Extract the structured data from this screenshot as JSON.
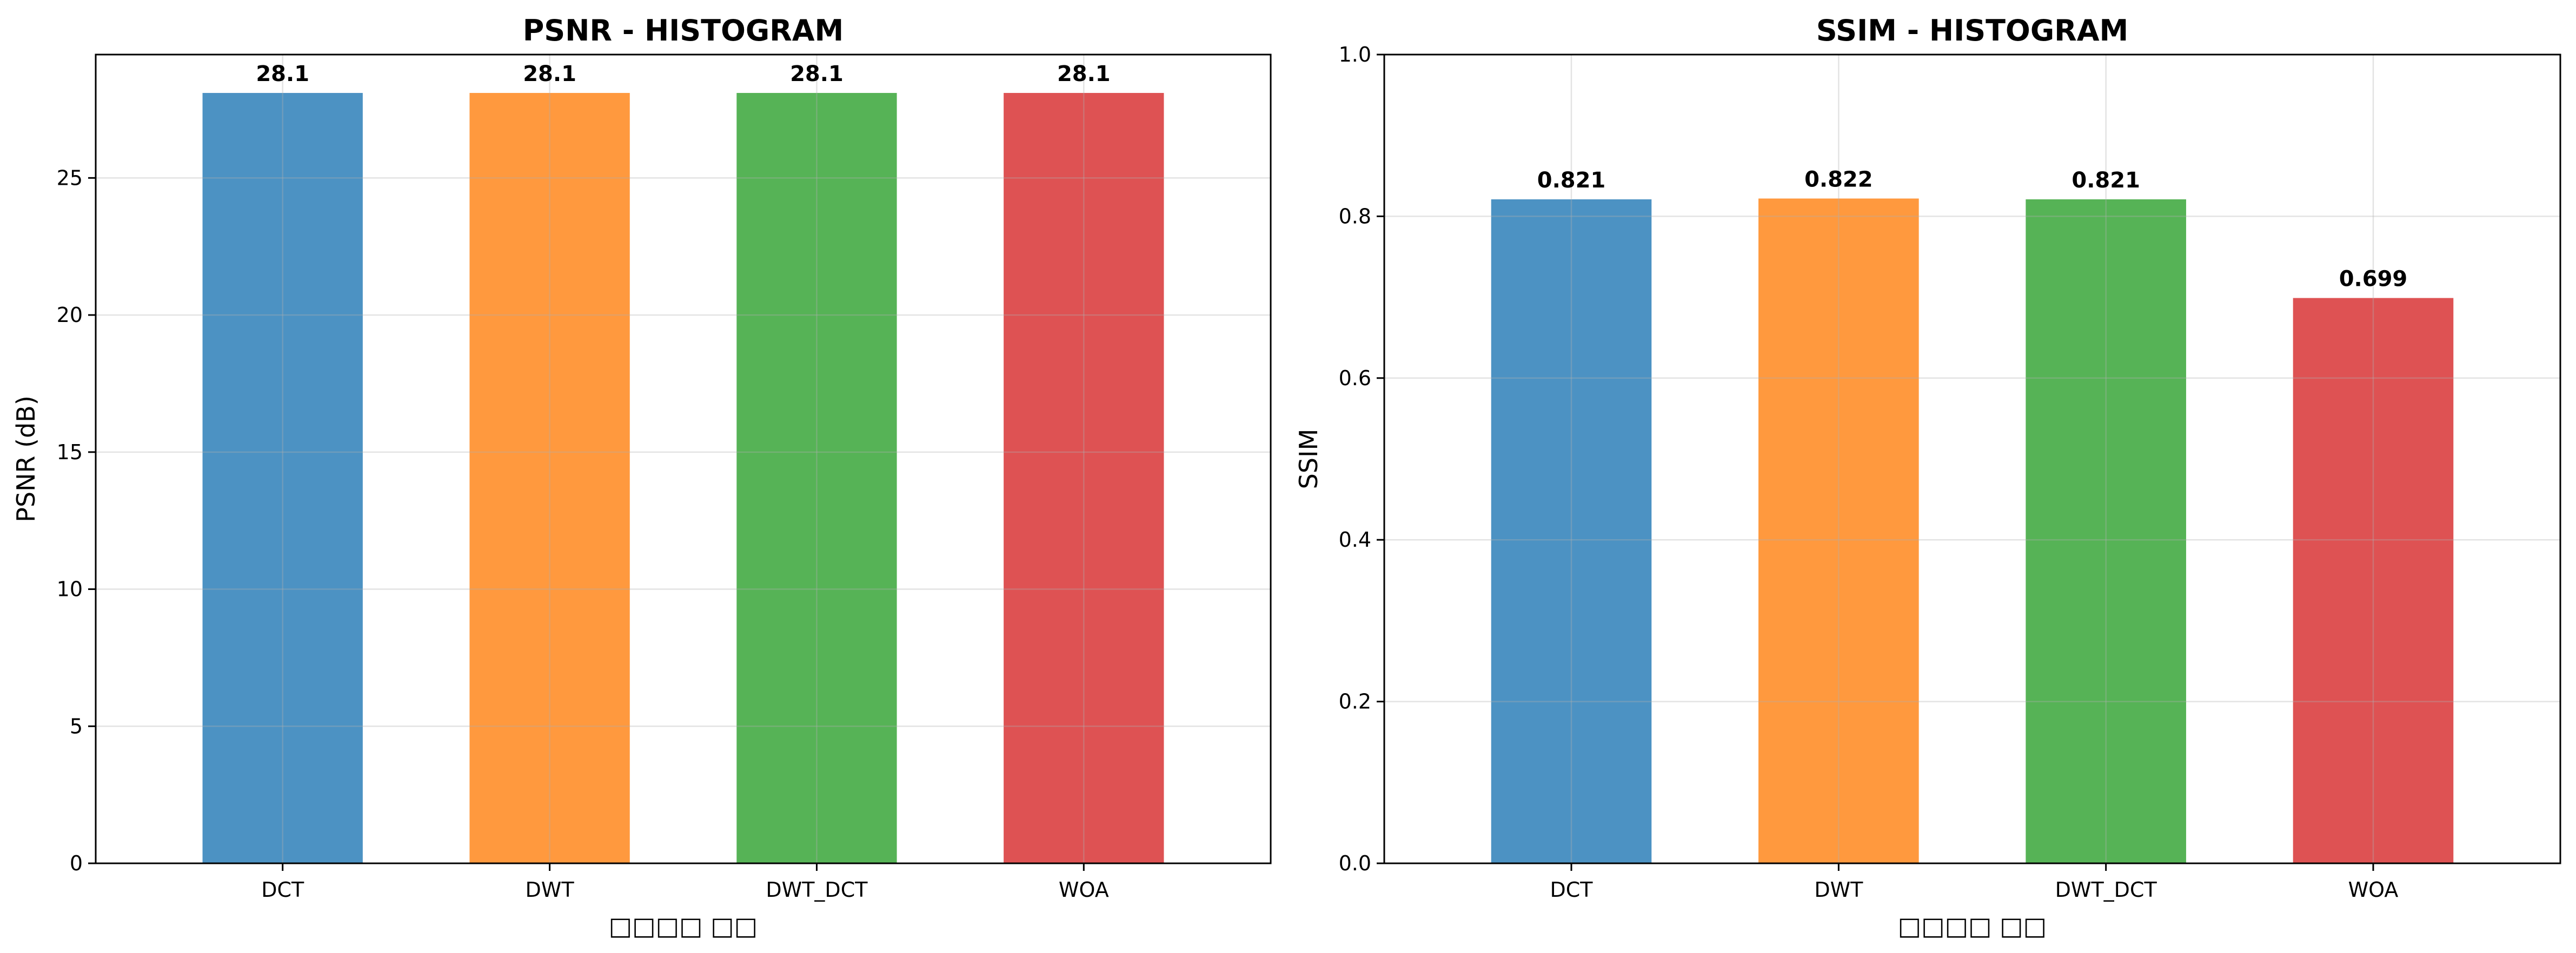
{
  "chart_data": [
    {
      "type": "bar",
      "title": "PSNR - HISTOGRAM",
      "xlabel": "□□□□ □□",
      "ylabel": "PSNR (dB)",
      "categories": [
        "DCT",
        "DWT",
        "DWT_DCT",
        "WOA"
      ],
      "values": [
        28.1,
        28.1,
        28.1,
        28.1
      ],
      "value_labels": [
        "28.1",
        "28.1",
        "28.1",
        "28.1"
      ],
      "ylim": [
        0,
        29.5
      ],
      "yticks": [
        0,
        5,
        10,
        15,
        20,
        25
      ],
      "ytick_labels": [
        "0",
        "5",
        "10",
        "15",
        "20",
        "25"
      ],
      "colors": [
        "#4c92c3",
        "#ff993e",
        "#56b356",
        "#de5253"
      ],
      "grid": true,
      "legend": "none"
    },
    {
      "type": "bar",
      "title": "SSIM - HISTOGRAM",
      "xlabel": "□□□□ □□",
      "ylabel": "SSIM",
      "categories": [
        "DCT",
        "DWT",
        "DWT_DCT",
        "WOA"
      ],
      "values": [
        0.821,
        0.822,
        0.821,
        0.699
      ],
      "value_labels": [
        "0.821",
        "0.822",
        "0.821",
        "0.699"
      ],
      "ylim": [
        0,
        1.0
      ],
      "yticks": [
        0,
        0.2,
        0.4,
        0.6,
        0.8,
        1.0
      ],
      "ytick_labels": [
        "0.0",
        "0.2",
        "0.4",
        "0.6",
        "0.8",
        "1.0"
      ],
      "colors": [
        "#4c92c3",
        "#ff993e",
        "#56b356",
        "#de5253"
      ],
      "grid": true,
      "legend": "none"
    }
  ]
}
